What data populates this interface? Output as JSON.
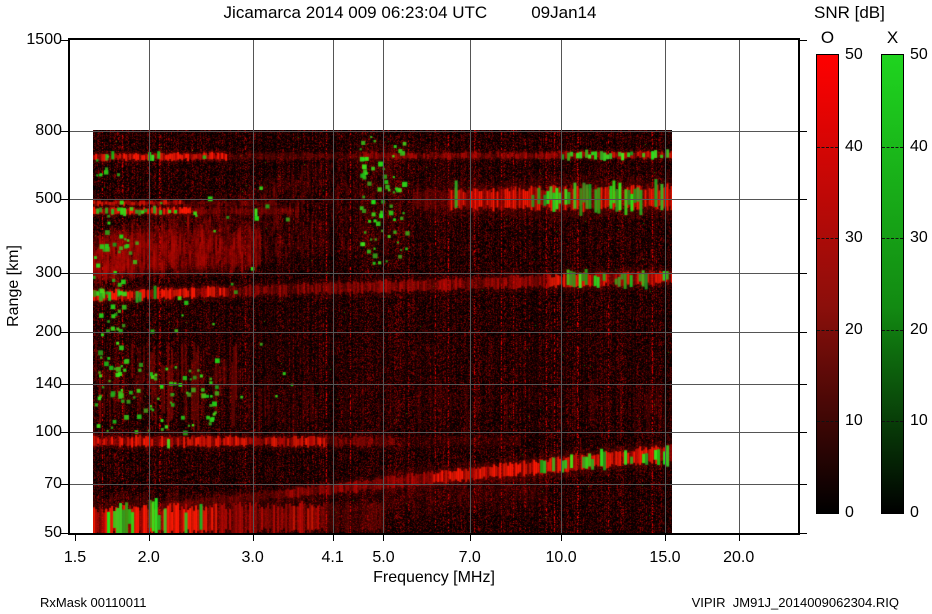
{
  "header": {
    "title": "Jicamarca 2014 009 06:23:04 UTC",
    "date": "09Jan14"
  },
  "footer": {
    "left": "RxMask 00110011",
    "right": "VIPIR  JM91J_2014009062304.RIQ"
  },
  "axes": {
    "x": {
      "label": "Frequency [MHz]",
      "scale": "log",
      "tick_labels": [
        "1.5",
        "2.0",
        "3.0",
        "4.1",
        "5.0",
        "7.0",
        "10.0",
        "15.0",
        "20.0"
      ],
      "tick_values": [
        1.5,
        2.0,
        3.0,
        4.1,
        5.0,
        7.0,
        10.0,
        15.0,
        20.0
      ]
    },
    "y": {
      "label": "Range [km]",
      "scale": "log",
      "tick_labels": [
        "50",
        "70",
        "100",
        "140",
        "200",
        "300",
        "500",
        "800",
        "1500"
      ],
      "tick_values": [
        50,
        70,
        100,
        140,
        200,
        300,
        500,
        800,
        1500
      ]
    }
  },
  "colorbar": {
    "title": "SNR [dB]",
    "min": 0,
    "max": 50,
    "ticks": [
      50,
      40,
      30,
      20,
      10,
      0
    ],
    "bars": [
      {
        "label": "O",
        "mode": "ordinary",
        "top_color": "#ff0000",
        "mid_color": "#8b0f0b",
        "bottom_color": "#000000"
      },
      {
        "label": "X",
        "mode": "extraordinary",
        "top_color": "#1fd41f",
        "mid_color": "#128a12",
        "bottom_color": "#000000"
      }
    ]
  },
  "chart_data": {
    "type": "heatmap",
    "title": "Jicamarca 2014 009 06:23:04 UTC 09Jan14",
    "xlabel": "Frequency [MHz]",
    "ylabel": "Range [km]",
    "x_scale": "log",
    "y_scale": "log",
    "x_range": [
      1.46,
      25.2
    ],
    "y_range": [
      50,
      1500
    ],
    "x_ticks": [
      1.5,
      2.0,
      3.0,
      4.1,
      5.0,
      7.0,
      10.0,
      15.0,
      20.0
    ],
    "y_ticks": [
      50,
      70,
      100,
      140,
      200,
      300,
      500,
      800,
      1500
    ],
    "snr_db_range": [
      0,
      50
    ],
    "modes": {
      "O": "red",
      "X": "green"
    },
    "data_extent": {
      "f_mhz": [
        1.61,
        15.42
      ],
      "range_km": [
        50,
        805
      ]
    },
    "noise": {
      "column_streak_prob": 0.05,
      "base_level": 0.13,
      "seed": 20140109
    },
    "features": [
      {
        "name": "F-spread-haze",
        "type": "cloud",
        "f": [
          1.61,
          5.5
        ],
        "r_low": [
          300,
          380
        ],
        "r_high": [
          400,
          800
        ],
        "alpha": [
          0.5,
          0.15
        ]
      },
      {
        "name": "F-core",
        "type": "cloud",
        "f": [
          1.61,
          3.1
        ],
        "r_low": [
          305,
          330
        ],
        "r_high": [
          400,
          430
        ],
        "alpha": [
          0.55,
          0.4
        ]
      },
      {
        "name": "haze-5mhz",
        "type": "cloud",
        "f": [
          4.5,
          5.5
        ],
        "r_low": [
          330,
          330
        ],
        "r_high": [
          780,
          780
        ],
        "alpha": [
          0.16,
          0.16
        ]
      },
      {
        "name": "fill-below-E",
        "type": "cloud",
        "f": [
          5.0,
          9.5
        ],
        "r_low": [
          60,
          63
        ],
        "r_high": [
          80,
          84
        ],
        "alpha": [
          0.15,
          0.12
        ]
      },
      {
        "name": "streaks-left-low",
        "type": "streaks",
        "f": [
          1.61,
          2.9
        ],
        "r": [
          100,
          190
        ],
        "alpha": 0.5,
        "density": 0.6
      },
      {
        "name": "streaks-wide-low",
        "type": "streaks",
        "f": [
          2.9,
          15.4
        ],
        "r": [
          95,
          150
        ],
        "alpha": 0.2,
        "density": 0.45
      },
      {
        "name": "streaks-upper-right",
        "type": "streaks",
        "f": [
          5.5,
          15.4
        ],
        "r": [
          305,
          790
        ],
        "alpha": 0.1,
        "density": 0.5
      },
      {
        "name": "streaks-faint-low",
        "type": "streaks",
        "f": [
          1.61,
          15.4
        ],
        "r": [
          95,
          250
        ],
        "alpha": 0.07,
        "density": 0.5
      },
      {
        "name": "band-670km",
        "type": "band",
        "r": [
          668,
          678
        ],
        "th": [
          6,
          6
        ],
        "profile": [
          [
            1.61,
            2.7,
            0.85
          ],
          [
            2.7,
            4.6,
            0.28
          ],
          [
            4.6,
            10,
            0.5
          ],
          [
            10,
            15.42,
            0.6
          ]
        ],
        "green": [
          [
            1.63,
            1.74,
            0.5
          ],
          [
            1.95,
            2.12,
            0.6
          ],
          [
            10.0,
            15.3,
            0.5
          ]
        ]
      },
      {
        "name": "band-486km",
        "type": "band",
        "r": [
          486,
          486
        ],
        "th": [
          4,
          4
        ],
        "profile": [
          [
            1.61,
            2.3,
            0.65
          ],
          [
            2.3,
            3.3,
            0.25
          ]
        ],
        "green": []
      },
      {
        "name": "band-462km",
        "type": "band",
        "r": [
          460,
          460
        ],
        "th": [
          6,
          6
        ],
        "profile": [
          [
            1.61,
            2.35,
            0.85
          ],
          [
            2.35,
            3.5,
            0.3
          ]
        ],
        "green": [
          [
            1.61,
            2.25,
            0.5
          ],
          [
            2.85,
            3.05,
            0.5
          ]
        ]
      },
      {
        "name": "band-500km-right",
        "type": "band",
        "r": [
          498,
          505
        ],
        "th": [
          18,
          22
        ],
        "profile": [
          [
            5.6,
            6.4,
            0.3
          ],
          [
            6.4,
            15.42,
            0.8
          ]
        ],
        "green": [
          [
            6.6,
            7.2,
            0.15
          ],
          [
            8.7,
            15.3,
            0.55
          ]
        ]
      },
      {
        "name": "band-260km",
        "type": "band",
        "r": [
          256,
          292
        ],
        "th": [
          9,
          12
        ],
        "profile": [
          [
            1.61,
            2.7,
            0.85
          ],
          [
            2.7,
            4.8,
            0.45
          ],
          [
            4.8,
            9.5,
            0.5
          ],
          [
            9.5,
            15.42,
            0.75
          ]
        ],
        "green": [
          [
            1.61,
            1.78,
            0.55
          ],
          [
            1.9,
            2.12,
            0.45
          ],
          [
            10.1,
            15.1,
            0.5
          ]
        ]
      },
      {
        "name": "band-95km",
        "type": "band",
        "r": [
          94,
          94
        ],
        "th": [
          9,
          9
        ],
        "profile": [
          [
            1.61,
            2.0,
            0.8
          ],
          [
            2.0,
            4.0,
            0.7
          ],
          [
            4.0,
            5.2,
            0.4
          ],
          [
            5.2,
            8.5,
            0.15
          ]
        ],
        "green": [
          [
            1.7,
            2.4,
            0.08
          ]
        ]
      },
      {
        "name": "band-rising-E",
        "type": "band",
        "r": [
          60,
          87
        ],
        "th": [
          7,
          15
        ],
        "profile": [
          [
            2.1,
            3.4,
            0.3
          ],
          [
            3.4,
            6.0,
            0.5
          ],
          [
            6.0,
            15.42,
            0.85
          ]
        ],
        "green": [
          [
            5.4,
            5.8,
            0.2
          ],
          [
            9.0,
            15.2,
            0.5
          ]
        ]
      },
      {
        "name": "band-bottom",
        "type": "band",
        "r": [
          54,
          56
        ],
        "th": [
          26,
          26
        ],
        "profile": [
          [
            1.61,
            2.6,
            0.9
          ],
          [
            2.6,
            4.0,
            0.55
          ],
          [
            4.0,
            5.0,
            0.25
          ]
        ],
        "green": [
          [
            1.7,
            1.88,
            0.8
          ],
          [
            2.0,
            2.15,
            0.85
          ],
          [
            2.3,
            2.45,
            0.3
          ]
        ]
      },
      {
        "name": "speckles-left-edge",
        "type": "speckles",
        "f": [
          1.6,
          1.84
        ],
        "r": [
          150,
          680
        ],
        "n": 55
      },
      {
        "name": "speckles-5mhz",
        "type": "speckles",
        "f": [
          4.55,
          5.45
        ],
        "r": [
          320,
          780
        ],
        "n": 70
      },
      {
        "name": "speckles-low-left",
        "type": "speckles",
        "f": [
          1.61,
          2.6
        ],
        "r": [
          100,
          175
        ],
        "n": 80
      },
      {
        "name": "speckles-scatter",
        "type": "speckles",
        "f": [
          1.61,
          3.5
        ],
        "r": [
          120,
          700
        ],
        "n": 40
      }
    ]
  }
}
